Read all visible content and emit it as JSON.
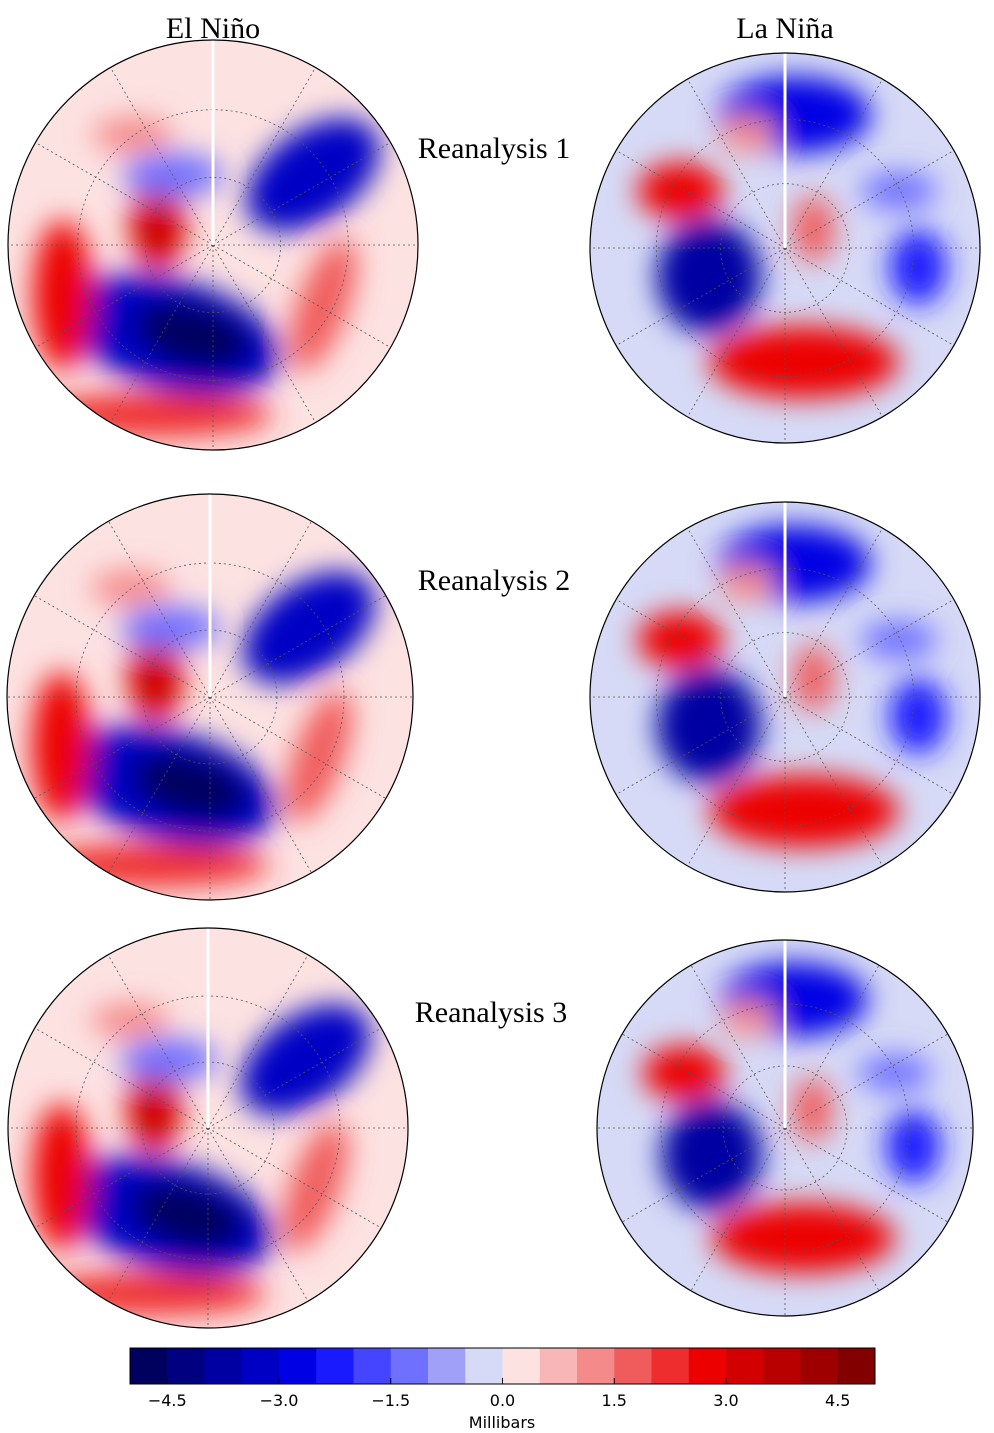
{
  "columns": [
    "El Niño",
    "La Niña"
  ],
  "rows": [
    "Reanalysis 1",
    "Reanalysis 2",
    "Reanalysis 3"
  ],
  "colorbar": {
    "label": "Millibars",
    "clim": [
      -5,
      5
    ],
    "ticks": [
      {
        "value": -4.5,
        "label": "−4.5"
      },
      {
        "value": -3.0,
        "label": "−3.0"
      },
      {
        "value": -1.5,
        "label": "−1.5"
      },
      {
        "value": 0,
        "label": "0.0"
      },
      {
        "value": 1.5,
        "label": "1.5"
      },
      {
        "value": 3.0,
        "label": "3.0"
      },
      {
        "value": 4.5,
        "label": "4.5"
      }
    ],
    "colors": [
      "#00005e",
      "#000080",
      "#0000a2",
      "#0000c4",
      "#0000e4",
      "#1a1aff",
      "#4545ff",
      "#7070ff",
      "#a0a0f8",
      "#d6daf6",
      "#fde2e2",
      "#f8b6b6",
      "#f48a8a",
      "#f05c5c",
      "#ee2e2e",
      "#ec0000",
      "#d20000",
      "#b80000",
      "#9e0000",
      "#820000"
    ]
  }
}
